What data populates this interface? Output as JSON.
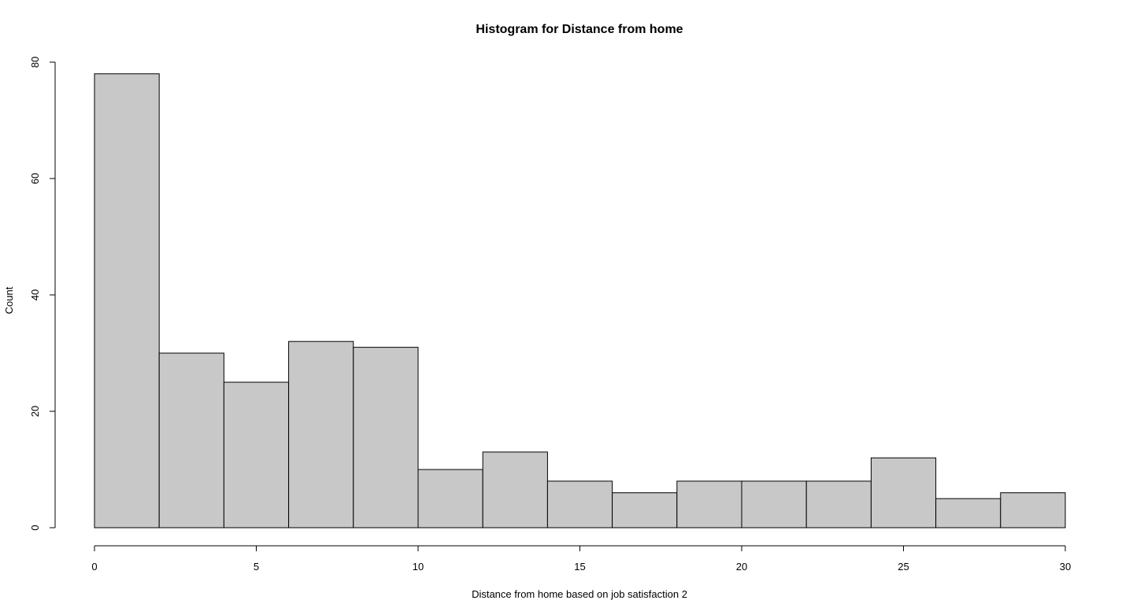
{
  "chart_data": {
    "type": "bar",
    "title": "Histogram for Distance from home",
    "xlabel": "Distance from home based on job satisfaction 2",
    "ylabel": "Count",
    "xlim": [
      0,
      30
    ],
    "ylim": [
      0,
      80
    ],
    "x_ticks": [
      0,
      5,
      10,
      15,
      20,
      25,
      30
    ],
    "y_ticks": [
      0,
      20,
      40,
      60,
      80
    ],
    "bin_edges": [
      0,
      2,
      4,
      6,
      8,
      10,
      12,
      14,
      16,
      18,
      20,
      22,
      24,
      26,
      28,
      30
    ],
    "values": [
      78,
      30,
      25,
      32,
      31,
      10,
      13,
      8,
      6,
      8,
      8,
      8,
      12,
      5,
      6
    ],
    "bar_color": "#c8c8c8",
    "grid": false
  }
}
